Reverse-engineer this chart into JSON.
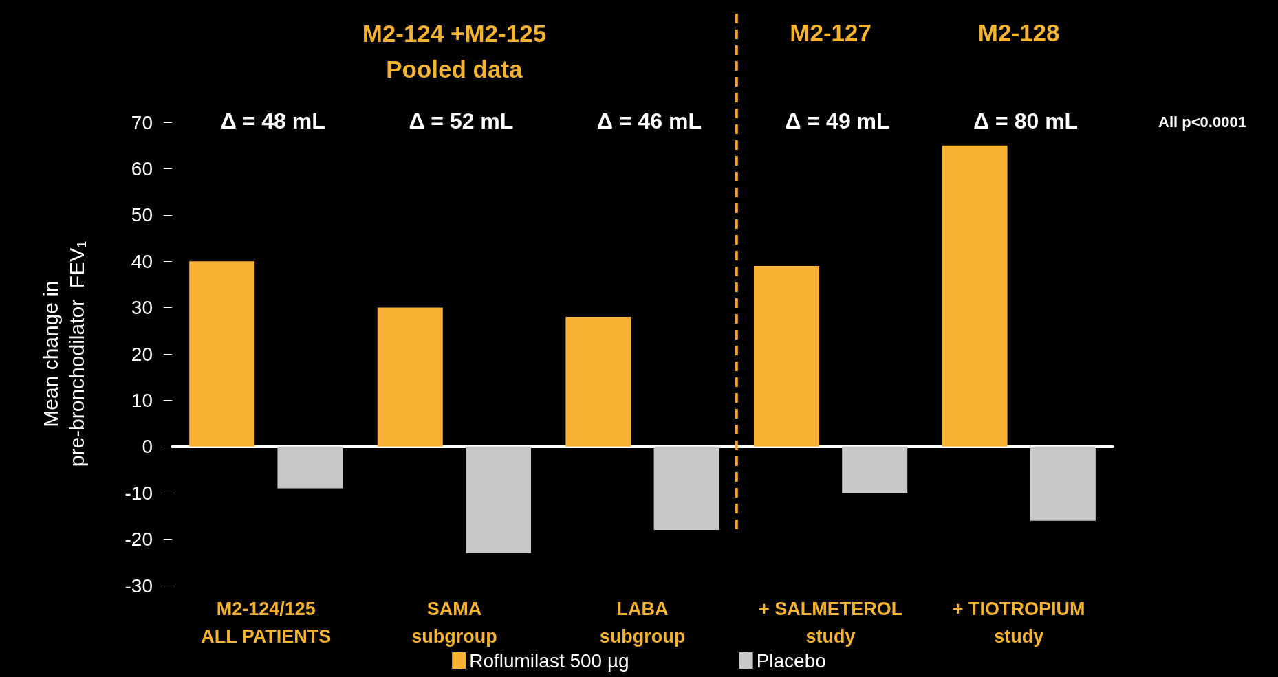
{
  "chart_data": {
    "type": "bar",
    "ylabel": "Mean change in\npre-bronchodilator  FEV₁",
    "categories": [
      "M2-124/125\nALL PATIENTS",
      "SAMA\nsubgroup",
      "LABA\nsubgroup",
      "+ SALMETEROL\nstudy",
      "+ TIOTROPIUM\nstudy"
    ],
    "series": [
      {
        "name": "Roflumilast 500 µg",
        "color": "#f9b233",
        "values": [
          40,
          30,
          28,
          39,
          65
        ]
      },
      {
        "name": "Placebo",
        "color": "#c8c8c8",
        "values": [
          -9,
          -23,
          -18,
          -10,
          -16
        ]
      }
    ],
    "ylim": [
      -30,
      70
    ],
    "yticks": [
      -30,
      -20,
      -10,
      0,
      10,
      20,
      30,
      40,
      50,
      60,
      70
    ],
    "legend": "bottom",
    "annotations": [
      "Δ = 48 mL",
      "Δ = 52 mL",
      "Δ = 46 mL",
      "Δ = 49 mL",
      "Δ = 80 mL",
      "M2-124 +M2-125\nPooled data",
      "M2-127",
      "M2-128",
      "All p<0.0001"
    ]
  }
}
